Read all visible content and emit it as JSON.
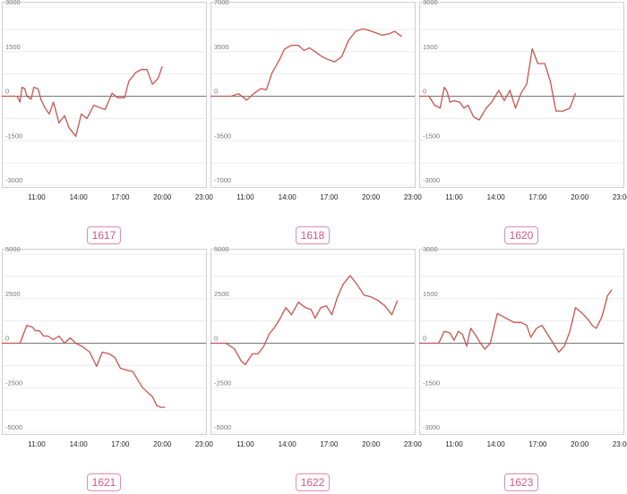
{
  "chart_data": [
    {
      "type": "line",
      "title": "1617",
      "x_ticks": [
        "11:00",
        "14:00",
        "17:00",
        "20:00",
        "23:00"
      ],
      "y_ticks": [
        3000,
        1500,
        0,
        -1500,
        -3000
      ],
      "ylim": [
        -3000,
        3000
      ],
      "xlim_hours": [
        8.5,
        23.2
      ],
      "grid": true,
      "series": [
        {
          "color": "#c8534e",
          "points": [
            [
              8.5,
              0
            ],
            [
              9.6,
              0
            ],
            [
              9.8,
              -200
            ],
            [
              9.95,
              300
            ],
            [
              10.15,
              250
            ],
            [
              10.3,
              0
            ],
            [
              10.6,
              -100
            ],
            [
              10.8,
              300
            ],
            [
              11.1,
              250
            ],
            [
              11.3,
              -100
            ],
            [
              11.6,
              -400
            ],
            [
              11.9,
              -600
            ],
            [
              12.2,
              -200
            ],
            [
              12.6,
              -900
            ],
            [
              13.0,
              -650
            ],
            [
              13.3,
              -1050
            ],
            [
              13.8,
              -1350
            ],
            [
              14.2,
              -600
            ],
            [
              14.6,
              -750
            ],
            [
              15.1,
              -300
            ],
            [
              15.6,
              -400
            ],
            [
              15.9,
              -450
            ],
            [
              16.4,
              100
            ],
            [
              16.8,
              -50
            ],
            [
              17.3,
              -50
            ],
            [
              17.6,
              500
            ],
            [
              18.1,
              800
            ],
            [
              18.5,
              900
            ],
            [
              18.9,
              900
            ],
            [
              19.3,
              400
            ],
            [
              19.7,
              600
            ],
            [
              20.0,
              1000
            ]
          ]
        }
      ]
    },
    {
      "type": "line",
      "title": "1618",
      "x_ticks": [
        "11:00",
        "14:00",
        "17:00",
        "20:00",
        "23:00"
      ],
      "y_ticks": [
        7000,
        3500,
        0,
        -3500,
        -7000
      ],
      "ylim": [
        -7000,
        7000
      ],
      "xlim_hours": [
        8.5,
        23.2
      ],
      "grid": true,
      "series": [
        {
          "color": "#c8534e",
          "points": [
            [
              8.5,
              0
            ],
            [
              10.0,
              0
            ],
            [
              10.5,
              200
            ],
            [
              11.1,
              -300
            ],
            [
              11.6,
              200
            ],
            [
              12.1,
              600
            ],
            [
              12.5,
              500
            ],
            [
              12.9,
              1800
            ],
            [
              13.5,
              3000
            ],
            [
              13.8,
              3700
            ],
            [
              14.3,
              4000
            ],
            [
              14.8,
              4000
            ],
            [
              15.2,
              3600
            ],
            [
              15.6,
              3800
            ],
            [
              16.0,
              3500
            ],
            [
              16.5,
              3100
            ],
            [
              16.9,
              2900
            ],
            [
              17.4,
              2700
            ],
            [
              17.9,
              3100
            ],
            [
              18.4,
              4400
            ],
            [
              18.9,
              5100
            ],
            [
              19.4,
              5300
            ],
            [
              19.8,
              5200
            ],
            [
              20.3,
              5000
            ],
            [
              20.8,
              4800
            ],
            [
              21.3,
              4900
            ],
            [
              21.7,
              5100
            ],
            [
              22.2,
              4700
            ]
          ]
        }
      ]
    },
    {
      "type": "line",
      "title": "1620",
      "x_ticks": [
        "11:00",
        "14:00",
        "17:00",
        "20:00",
        "23:00"
      ],
      "y_ticks": [
        3000,
        1500,
        0,
        -1500,
        -3000
      ],
      "ylim": [
        -3000,
        3000
      ],
      "xlim_hours": [
        8.5,
        23.2
      ],
      "grid": true,
      "series": [
        {
          "color": "#c8534e",
          "points": [
            [
              8.5,
              0
            ],
            [
              9.2,
              0
            ],
            [
              9.6,
              -300
            ],
            [
              10.0,
              -400
            ],
            [
              10.3,
              300
            ],
            [
              10.5,
              150
            ],
            [
              10.7,
              -200
            ],
            [
              11.0,
              -150
            ],
            [
              11.4,
              -200
            ],
            [
              11.7,
              -400
            ],
            [
              12.0,
              -300
            ],
            [
              12.4,
              -700
            ],
            [
              12.8,
              -800
            ],
            [
              13.3,
              -400
            ],
            [
              13.7,
              -200
            ],
            [
              14.2,
              200
            ],
            [
              14.6,
              -150
            ],
            [
              15.0,
              200
            ],
            [
              15.4,
              -400
            ],
            [
              15.8,
              100
            ],
            [
              16.2,
              400
            ],
            [
              16.6,
              1600
            ],
            [
              17.0,
              1100
            ],
            [
              17.5,
              1100
            ],
            [
              17.9,
              500
            ],
            [
              18.3,
              -500
            ],
            [
              18.8,
              -500
            ],
            [
              19.3,
              -400
            ],
            [
              19.7,
              100
            ]
          ]
        }
      ]
    },
    {
      "type": "line",
      "title": "1621",
      "x_ticks": [
        "11:00",
        "14:00",
        "17:00",
        "20:00",
        "23:00"
      ],
      "y_ticks": [
        5000,
        2500,
        0,
        -2500,
        -5000
      ],
      "ylim": [
        -5000,
        5000
      ],
      "xlim_hours": [
        8.5,
        23.2
      ],
      "grid": true,
      "series": [
        {
          "color": "#c8534e",
          "points": [
            [
              8.5,
              0
            ],
            [
              9.8,
              0
            ],
            [
              10.0,
              400
            ],
            [
              10.3,
              1000
            ],
            [
              10.7,
              900
            ],
            [
              10.9,
              700
            ],
            [
              11.2,
              700
            ],
            [
              11.5,
              400
            ],
            [
              11.8,
              400
            ],
            [
              12.2,
              200
            ],
            [
              12.6,
              400
            ],
            [
              13.0,
              0
            ],
            [
              13.4,
              300
            ],
            [
              13.8,
              0
            ],
            [
              14.3,
              -200
            ],
            [
              14.8,
              -500
            ],
            [
              15.3,
              -1300
            ],
            [
              15.7,
              -500
            ],
            [
              16.2,
              -600
            ],
            [
              16.6,
              -800
            ],
            [
              17.0,
              -1400
            ],
            [
              17.4,
              -1500
            ],
            [
              17.9,
              -1600
            ],
            [
              18.2,
              -2000
            ],
            [
              18.6,
              -2500
            ],
            [
              19.0,
              -2800
            ],
            [
              19.3,
              -3000
            ],
            [
              19.6,
              -3500
            ],
            [
              19.9,
              -3600
            ],
            [
              20.2,
              -3600
            ]
          ]
        }
      ]
    },
    {
      "type": "line",
      "title": "1622",
      "x_ticks": [
        "11:00",
        "14:00",
        "17:00",
        "20:00",
        "23:00"
      ],
      "y_ticks": [
        5000,
        2500,
        0,
        -2500,
        -5000
      ],
      "ylim": [
        -5000,
        5000
      ],
      "xlim_hours": [
        8.5,
        23.2
      ],
      "grid": true,
      "series": [
        {
          "color": "#c8534e",
          "points": [
            [
              8.5,
              0
            ],
            [
              9.6,
              0
            ],
            [
              10.2,
              -300
            ],
            [
              10.7,
              -1000
            ],
            [
              11.0,
              -1200
            ],
            [
              11.5,
              -600
            ],
            [
              11.9,
              -600
            ],
            [
              12.3,
              -200
            ],
            [
              12.7,
              500
            ],
            [
              13.1,
              900
            ],
            [
              13.5,
              1400
            ],
            [
              13.9,
              2000
            ],
            [
              14.3,
              1600
            ],
            [
              14.8,
              2300
            ],
            [
              15.3,
              2000
            ],
            [
              15.7,
              1900
            ],
            [
              16.0,
              1400
            ],
            [
              16.4,
              2000
            ],
            [
              16.8,
              2100
            ],
            [
              17.2,
              1600
            ],
            [
              17.6,
              2600
            ],
            [
              18.0,
              3300
            ],
            [
              18.5,
              3800
            ],
            [
              19.0,
              3300
            ],
            [
              19.5,
              2700
            ],
            [
              20.0,
              2600
            ],
            [
              20.5,
              2400
            ],
            [
              21.0,
              2100
            ],
            [
              21.5,
              1600
            ],
            [
              21.9,
              2400
            ]
          ]
        }
      ]
    },
    {
      "type": "line",
      "title": "1623",
      "x_ticks": [
        "11:00",
        "14:00",
        "17:00",
        "20:00",
        "23:00"
      ],
      "y_ticks": [
        3000,
        1500,
        0,
        -1500,
        -3000
      ],
      "ylim": [
        -3000,
        3000
      ],
      "xlim_hours": [
        8.5,
        23.2
      ],
      "grid": true,
      "series": [
        {
          "color": "#c8534e",
          "points": [
            [
              8.5,
              0
            ],
            [
              9.9,
              0
            ],
            [
              10.3,
              400
            ],
            [
              10.7,
              350
            ],
            [
              11.0,
              100
            ],
            [
              11.3,
              400
            ],
            [
              11.6,
              300
            ],
            [
              11.9,
              -100
            ],
            [
              12.2,
              500
            ],
            [
              12.5,
              300
            ],
            [
              12.9,
              0
            ],
            [
              13.2,
              -200
            ],
            [
              13.6,
              0
            ],
            [
              14.1,
              1000
            ],
            [
              14.5,
              900
            ],
            [
              14.9,
              800
            ],
            [
              15.3,
              700
            ],
            [
              15.8,
              700
            ],
            [
              16.2,
              600
            ],
            [
              16.5,
              200
            ],
            [
              16.9,
              500
            ],
            [
              17.3,
              600
            ],
            [
              17.7,
              300
            ],
            [
              18.1,
              0
            ],
            [
              18.5,
              -300
            ],
            [
              18.9,
              -100
            ],
            [
              19.3,
              400
            ],
            [
              19.7,
              1200
            ],
            [
              20.2,
              1000
            ],
            [
              20.6,
              800
            ],
            [
              20.9,
              600
            ],
            [
              21.2,
              500
            ],
            [
              21.6,
              900
            ],
            [
              22.0,
              1600
            ],
            [
              22.3,
              1800
            ]
          ]
        }
      ]
    }
  ]
}
